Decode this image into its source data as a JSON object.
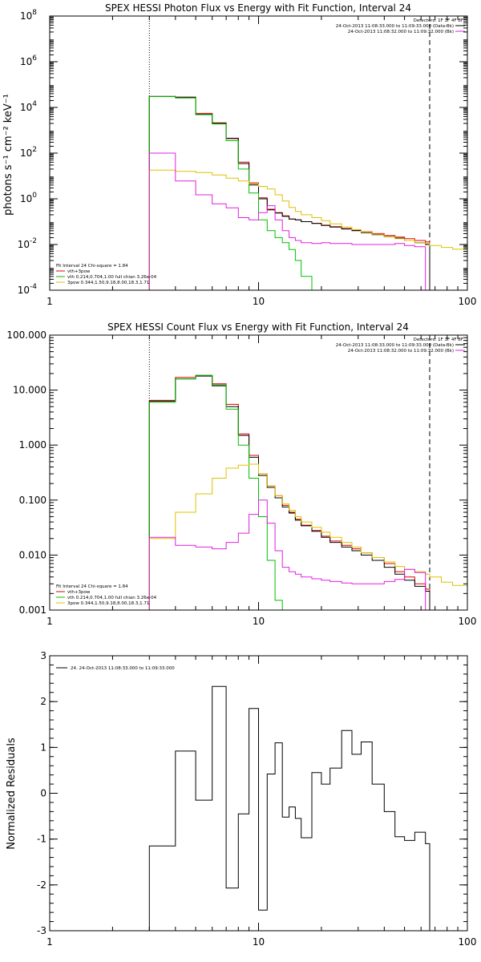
{
  "panels": [
    {
      "key": "photon",
      "title": "SPEX HESSI Photon Flux vs Energy with Fit Function, Interval 24",
      "ylabel": "photons s⁻¹ cm⁻² keV⁻¹",
      "yscale": "log",
      "yticks": [
        {
          "value": 0.0001,
          "mant": "10",
          "exp": "-4"
        },
        {
          "value": 0.01,
          "mant": "10",
          "exp": "-2"
        },
        {
          "value": 1,
          "mant": "10",
          "exp": "0"
        },
        {
          "value": 100.0,
          "mant": "10",
          "exp": "2"
        },
        {
          "value": 10000.0,
          "mant": "10",
          "exp": "4"
        },
        {
          "value": 1000000.0,
          "mant": "10",
          "exp": "6"
        },
        {
          "value": 100000000.0,
          "mant": "10",
          "exp": "8"
        }
      ],
      "detectors": "Detectors: 1F 3F 4F 8F",
      "legend_lines": [
        {
          "text": "24-Oct-2013 11:08:33.000 to 11:09:33.000 (Data-Bk)",
          "color": "#000000"
        },
        {
          "text": "24-Oct-2013 11:08:32.000 to 11:09:32.000 (Bk)",
          "color": "#e020e0"
        }
      ],
      "fit_header": "Fit Interval 24   Chi-square = 1.84",
      "fit_lines": [
        {
          "text": "vth+3pow",
          "color": "#e00000"
        },
        {
          "text": "vth 0.214,0.704,1.00  full chian 3.26e-04",
          "color": "#00c000"
        },
        {
          "text": "3pow 0.344,1.50,9.18,8.00,18.3,1.71",
          "color": "#e0c000"
        }
      ]
    },
    {
      "key": "count",
      "title": "SPEX HESSI Count Flux vs Energy with Fit Function, Interval 24",
      "ylabel": "",
      "yscale": "log",
      "yticks": [
        {
          "value": 0.001,
          "label": "0.001"
        },
        {
          "value": 0.01,
          "label": "0.010"
        },
        {
          "value": 0.1,
          "label": "0.100"
        },
        {
          "value": 1,
          "label": "1.000"
        },
        {
          "value": 10,
          "label": "10.000"
        },
        {
          "value": 100,
          "label": "100.000"
        }
      ],
      "detectors": "Detectors: 1F 3F 4F 8F",
      "legend_lines": [
        {
          "text": "24-Oct-2013 11:08:33.000 to 11:09:33.000 (Data-Bk)",
          "color": "#000000"
        },
        {
          "text": "24-Oct-2013 11:08:32.000 to 11:09:32.000 (Bk)",
          "color": "#e020e0"
        }
      ],
      "fit_header": "Fit Interval 24   Chi-square = 1.84",
      "fit_lines": [
        {
          "text": "vth+3pow",
          "color": "#e00000"
        },
        {
          "text": "vth 0.214,0.704,1.00  full chian 3.26e-04",
          "color": "#00c000"
        },
        {
          "text": "3pow 0.344,1.50,9.18,8.00,18.3,1.71",
          "color": "#e0c000"
        }
      ]
    },
    {
      "key": "resid",
      "title": "",
      "ylabel": "Normalized Residuals",
      "yscale": "linear",
      "yticks": [
        {
          "value": -3,
          "label": "-3"
        },
        {
          "value": -2,
          "label": "-2"
        },
        {
          "value": -1,
          "label": "-1"
        },
        {
          "value": 0,
          "label": "0"
        },
        {
          "value": 1,
          "label": "1"
        },
        {
          "value": 2,
          "label": "2"
        },
        {
          "value": 3,
          "label": "3"
        }
      ],
      "legend_lines": [
        {
          "text": "24. 24-Oct-2013 11:08:33.000 to 11:09:33.000",
          "color": "#000000"
        }
      ]
    }
  ],
  "chart_data": [
    {
      "type": "line",
      "title": "SPEX HESSI Photon Flux vs Energy with Fit Function, Interval 24",
      "xlabel": "",
      "ylabel": "photons s⁻¹ cm⁻² keV⁻¹",
      "xscale": "log",
      "yscale": "log",
      "xlim": [
        1,
        100
      ],
      "ylim": [
        0.0001,
        100000000
      ],
      "xticks": [
        1,
        10,
        100
      ],
      "vlines": [
        {
          "x": 3,
          "style": "dotted"
        },
        {
          "x": 66,
          "style": "dashed"
        }
      ],
      "grid": false,
      "legend": "top-right",
      "bin_edges": [
        3,
        4,
        5,
        6,
        7,
        8,
        9,
        10,
        11,
        12,
        13,
        14,
        15,
        16,
        18,
        20,
        22,
        25,
        28,
        31,
        35,
        40,
        45,
        50,
        56,
        63,
        66
      ],
      "series": [
        {
          "name": "vth+3pow",
          "color": "#e00000",
          "values": [
            30000,
            28000,
            5500,
            2100,
            450,
            40,
            5,
            1.1,
            0.35,
            0.25,
            0.18,
            0.13,
            0.12,
            0.1,
            0.085,
            0.07,
            0.06,
            0.05,
            0.042,
            0.036,
            0.03,
            0.025,
            0.021,
            0.018,
            0.015,
            0.013
          ]
        },
        {
          "name": "",
          "color": "#000000",
          "values": [
            30000,
            28000,
            5000,
            2000,
            430,
            35,
            4,
            1.0,
            0.33,
            0.24,
            0.17,
            0.13,
            0.12,
            0.1,
            0.083,
            0.068,
            0.058,
            0.048,
            0.04,
            0.033,
            0.027,
            0.022,
            0.019,
            0.015,
            0.012,
            0.01
          ]
        },
        {
          "name": "vth 0.214,0.704,1.00  full chian 3.26e-04",
          "color": "#00c000",
          "values": [
            30000,
            26000,
            4800,
            1900,
            350,
            20,
            1.8,
            0.12,
            0.04,
            0.02,
            0.012,
            0.006,
            0.002,
            0.0004,
            3e-05
          ]
        },
        {
          "name": "3pow 0.344,1.50,9.18,8.00,18.3,1.71",
          "color": "#e0c000",
          "values": [
            18,
            16,
            14,
            11,
            8,
            6,
            4.5,
            3.5,
            2.7,
            1.5,
            0.8,
            0.42,
            0.28,
            0.2,
            0.15,
            0.11,
            0.08,
            0.058,
            0.045,
            0.035,
            0.028,
            0.022,
            0.018,
            0.015,
            0.012,
            0.011,
            0.009,
            0.0075,
            0.0062
          ]
        },
        {
          "name": "Bk",
          "color": "#e020e0",
          "values": [
            100,
            6,
            1.5,
            0.6,
            0.4,
            0.15,
            0.12,
            0.25,
            0.5,
            0.12,
            0.04,
            0.02,
            0.015,
            0.012,
            0.011,
            0.012,
            0.011,
            0.011,
            0.01,
            0.01,
            0.01,
            0.01,
            0.011,
            0.009,
            0.008,
            0.0001
          ]
        }
      ],
      "extra_x_edges_3pow": [
        66,
        75,
        85,
        100
      ]
    },
    {
      "type": "line",
      "title": "SPEX HESSI Count Flux vs Energy with Fit Function, Interval 24",
      "xlabel": "",
      "ylabel": "",
      "xscale": "log",
      "yscale": "log",
      "xlim": [
        1,
        100
      ],
      "ylim": [
        0.001,
        100
      ],
      "xticks": [
        1,
        10,
        100
      ],
      "vlines": [
        {
          "x": 3,
          "style": "dotted"
        },
        {
          "x": 66,
          "style": "dashed"
        }
      ],
      "grid": false,
      "legend": "top-right",
      "bin_edges": [
        3,
        4,
        5,
        6,
        7,
        8,
        9,
        10,
        11,
        12,
        13,
        14,
        15,
        16,
        18,
        20,
        22,
        25,
        28,
        31,
        35,
        40,
        45,
        50,
        56,
        63,
        66
      ],
      "series": [
        {
          "name": "vth+3pow",
          "color": "#e00000",
          "values": [
            6.5,
            17,
            18.5,
            13,
            5.5,
            1.6,
            0.65,
            0.3,
            0.18,
            0.12,
            0.08,
            0.06,
            0.045,
            0.035,
            0.028,
            0.022,
            0.018,
            0.015,
            0.013,
            0.011,
            0.009,
            0.007,
            0.005,
            0.004,
            0.003,
            0.0024
          ]
        },
        {
          "name": "",
          "color": "#000000",
          "values": [
            6.3,
            16,
            18,
            12,
            5,
            1.5,
            0.6,
            0.28,
            0.17,
            0.11,
            0.075,
            0.058,
            0.043,
            0.034,
            0.027,
            0.021,
            0.017,
            0.014,
            0.012,
            0.01,
            0.008,
            0.006,
            0.0045,
            0.0035,
            0.0027,
            0.0022
          ]
        },
        {
          "name": "vth 0.214,0.704,1.00  full chian 3.26e-04",
          "color": "#00c000",
          "values": [
            6.0,
            16,
            18.5,
            12.5,
            4.5,
            1.0,
            0.25,
            0.05,
            0.008,
            0.0015,
            0.0005
          ]
        },
        {
          "name": "3pow 0.344,1.50,9.18,8.00,18.3,1.71",
          "color": "#e0c000",
          "values": [
            0.02,
            0.06,
            0.13,
            0.25,
            0.38,
            0.43,
            0.45,
            0.3,
            0.18,
            0.12,
            0.085,
            0.065,
            0.05,
            0.04,
            0.032,
            0.026,
            0.021,
            0.017,
            0.014,
            0.011,
            0.009,
            0.0075,
            0.0062,
            0.0055,
            0.005,
            0.0045,
            0.004,
            0.0032,
            0.0028,
            0.0024
          ]
        },
        {
          "name": "Bk",
          "color": "#e020e0",
          "values": [
            0.021,
            0.015,
            0.014,
            0.013,
            0.017,
            0.025,
            0.055,
            0.1,
            0.038,
            0.012,
            0.006,
            0.005,
            0.0045,
            0.004,
            0.0037,
            0.0035,
            0.0033,
            0.0031,
            0.003,
            0.003,
            0.003,
            0.0033,
            0.0036,
            0.0055,
            0.0048,
            1e-05
          ]
        }
      ],
      "extra_x_edges_3pow": [
        66,
        75,
        85,
        100
      ]
    },
    {
      "type": "line",
      "title": "",
      "xlabel": "",
      "ylabel": "Normalized Residuals",
      "xscale": "log",
      "yscale": "linear",
      "xlim": [
        1,
        100
      ],
      "ylim": [
        -3,
        3
      ],
      "xticks": [
        1,
        10,
        100
      ],
      "grid": false,
      "legend": "top-left",
      "bin_edges": [
        3,
        4,
        5,
        6,
        7,
        8,
        9,
        10,
        11,
        12,
        13,
        14,
        15,
        16,
        18,
        20,
        22,
        25,
        28,
        31,
        35,
        40,
        45,
        50,
        56,
        63,
        66
      ],
      "series": [
        {
          "name": "24. 24-Oct-2013 11:08:33.000 to 11:09:33.000",
          "color": "#000000",
          "values": [
            -1.15,
            0.92,
            -0.15,
            2.33,
            -2.07,
            -0.45,
            1.85,
            -2.55,
            0.42,
            1.1,
            -0.52,
            -0.3,
            -0.55,
            -0.97,
            0.45,
            0.2,
            0.55,
            1.37,
            0.85,
            1.12,
            0.2,
            -0.4,
            -0.95,
            -1.03,
            -0.85,
            -1.1
          ]
        }
      ]
    }
  ]
}
